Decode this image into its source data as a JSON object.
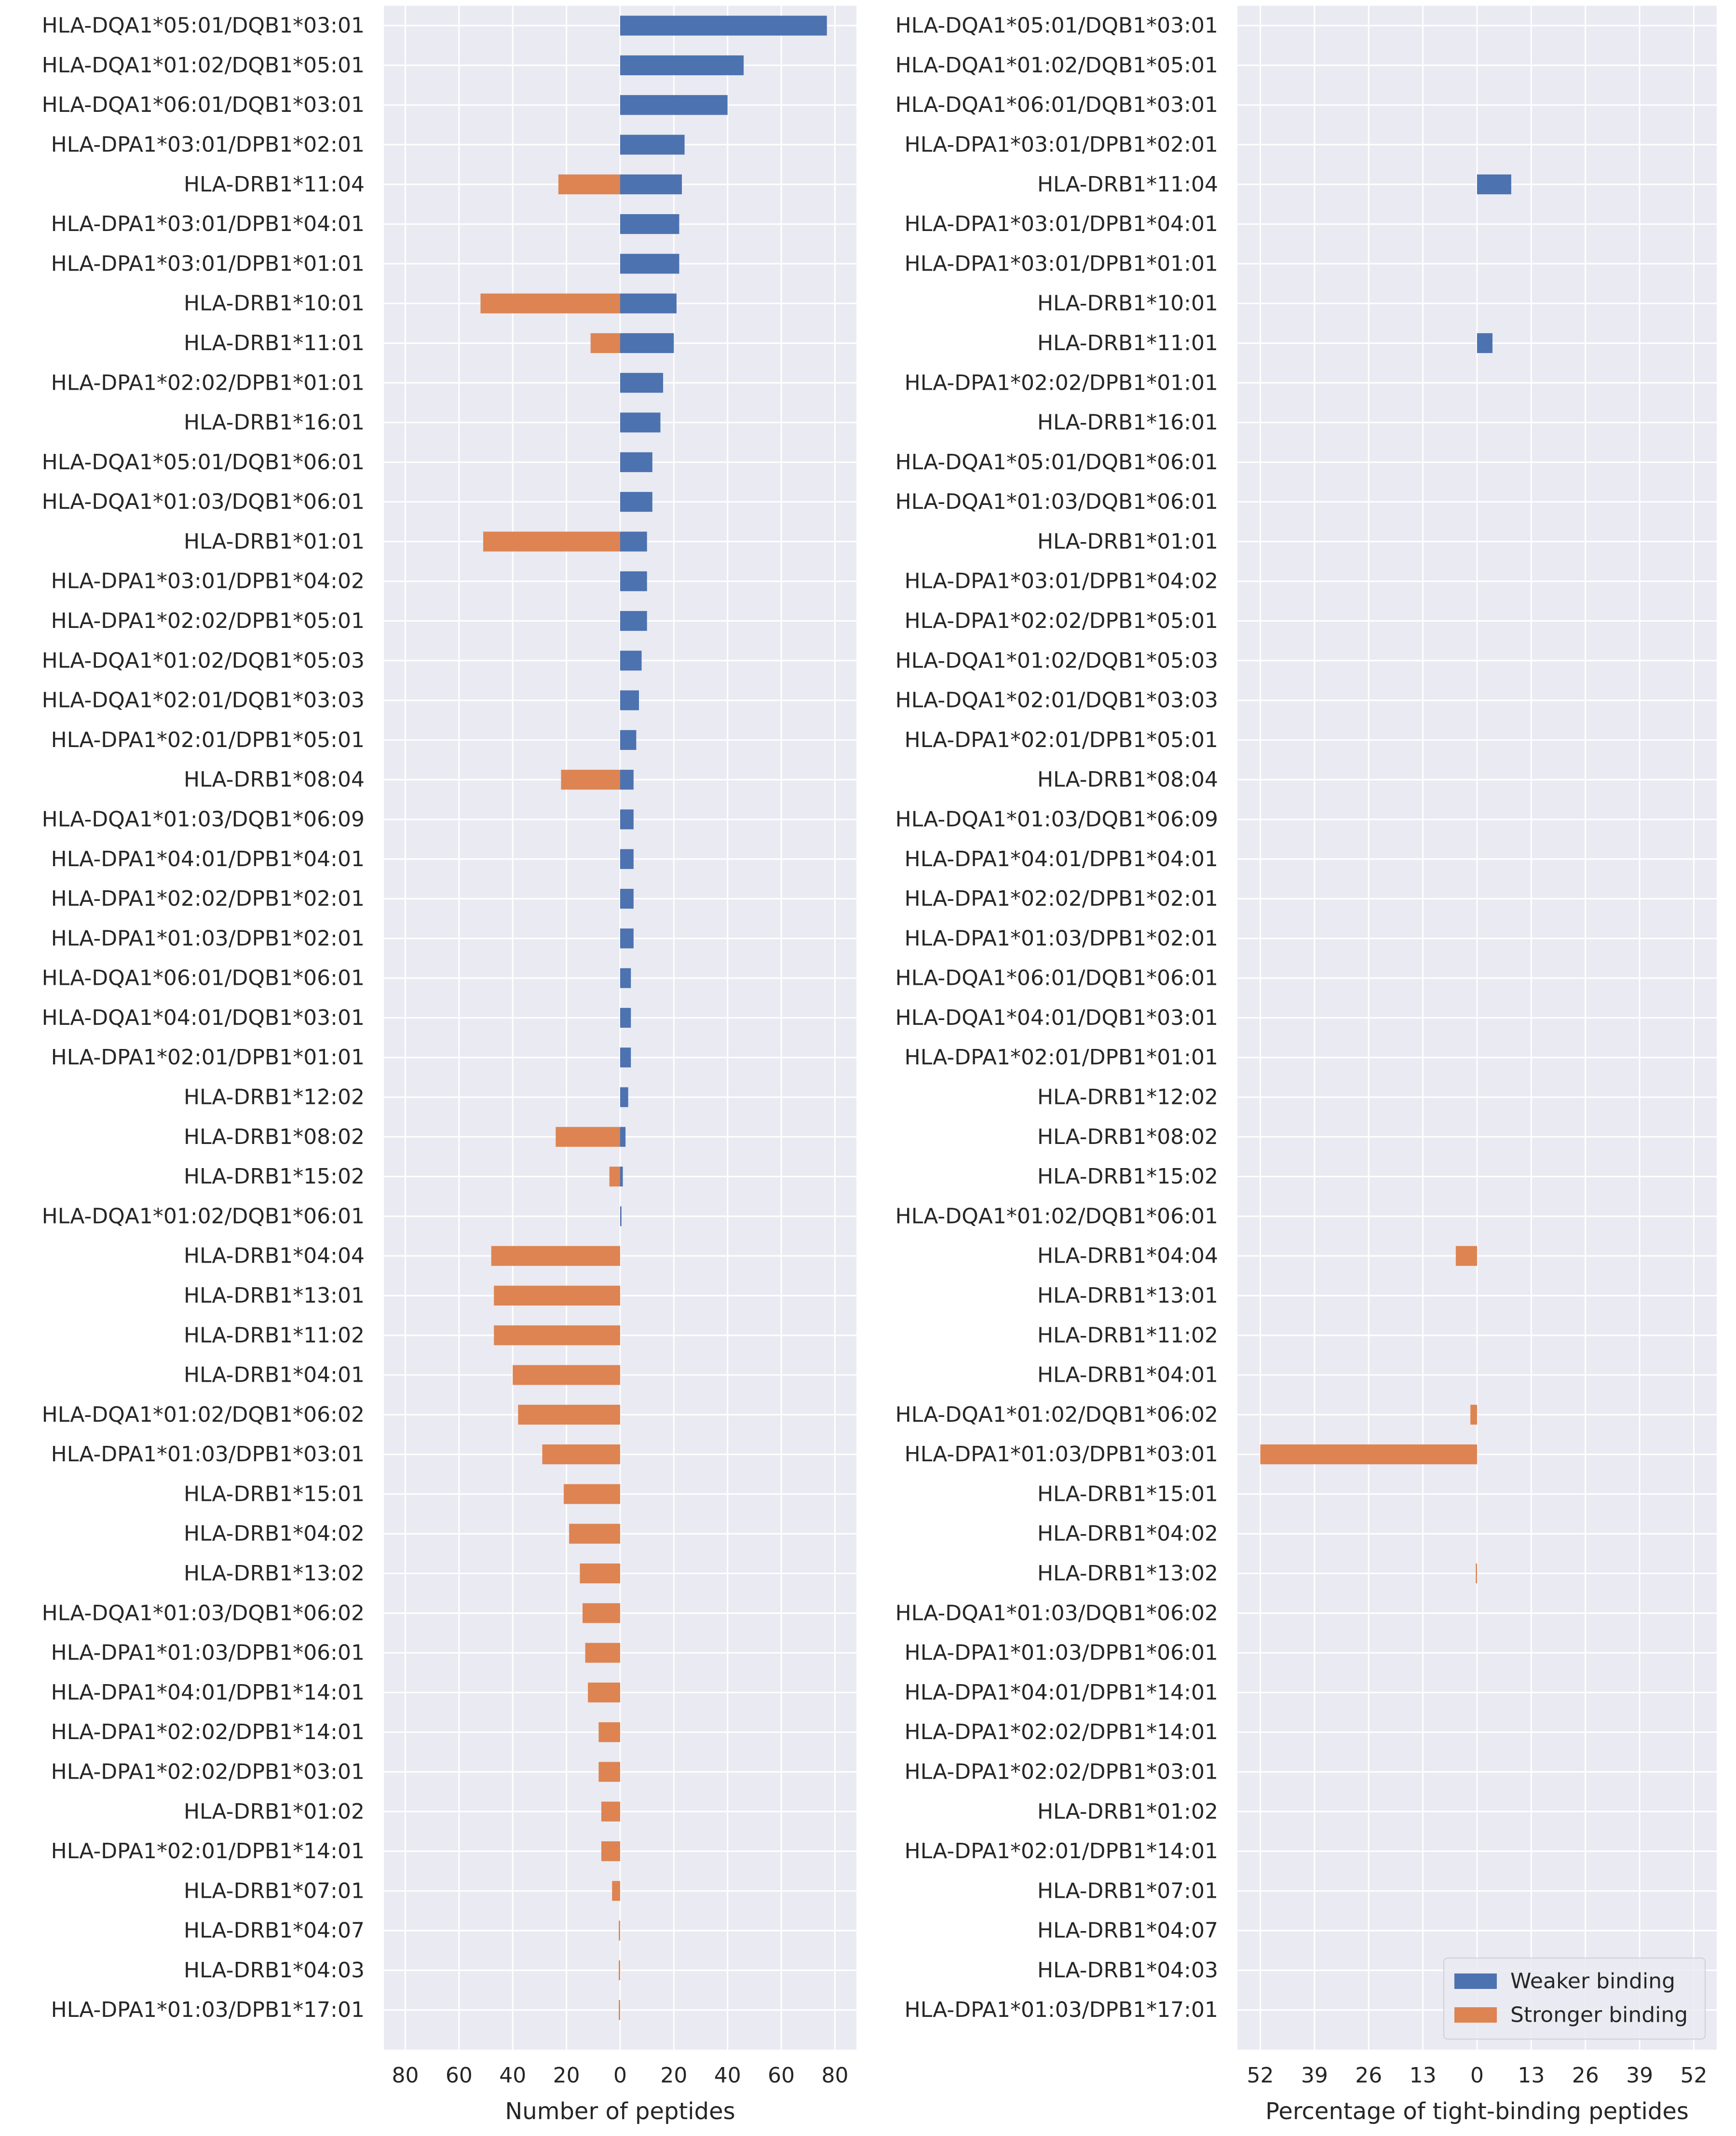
{
  "colors": {
    "weaker": "#4c72b0",
    "stronger": "#dd8452",
    "panel_bg": "#eaeaf2",
    "grid": "#ffffff",
    "text": "#262626"
  },
  "chart_data": [
    {
      "type": "bar",
      "orientation": "horizontal-diverging",
      "xlabel": "Number of peptides",
      "xticks": [
        80,
        60,
        40,
        20,
        0,
        20,
        40,
        60,
        80
      ],
      "xlim": [
        -88,
        88
      ],
      "grid": true,
      "categories": [
        "HLA-DQA1*05:01/DQB1*03:01",
        "HLA-DQA1*01:02/DQB1*05:01",
        "HLA-DQA1*06:01/DQB1*03:01",
        "HLA-DPA1*03:01/DPB1*02:01",
        "HLA-DRB1*11:04",
        "HLA-DPA1*03:01/DPB1*04:01",
        "HLA-DPA1*03:01/DPB1*01:01",
        "HLA-DRB1*10:01",
        "HLA-DRB1*11:01",
        "HLA-DPA1*02:02/DPB1*01:01",
        "HLA-DRB1*16:01",
        "HLA-DQA1*05:01/DQB1*06:01",
        "HLA-DQA1*01:03/DQB1*06:01",
        "HLA-DRB1*01:01",
        "HLA-DPA1*03:01/DPB1*04:02",
        "HLA-DPA1*02:02/DPB1*05:01",
        "HLA-DQA1*01:02/DQB1*05:03",
        "HLA-DQA1*02:01/DQB1*03:03",
        "HLA-DPA1*02:01/DPB1*05:01",
        "HLA-DRB1*08:04",
        "HLA-DQA1*01:03/DQB1*06:09",
        "HLA-DPA1*04:01/DPB1*04:01",
        "HLA-DPA1*02:02/DPB1*02:01",
        "HLA-DPA1*01:03/DPB1*02:01",
        "HLA-DQA1*06:01/DQB1*06:01",
        "HLA-DQA1*04:01/DQB1*03:01",
        "HLA-DPA1*02:01/DPB1*01:01",
        "HLA-DRB1*12:02",
        "HLA-DRB1*08:02",
        "HLA-DRB1*15:02",
        "HLA-DQA1*01:02/DQB1*06:01",
        "HLA-DRB1*04:04",
        "HLA-DRB1*13:01",
        "HLA-DRB1*11:02",
        "HLA-DRB1*04:01",
        "HLA-DQA1*01:02/DQB1*06:02",
        "HLA-DPA1*01:03/DPB1*03:01",
        "HLA-DRB1*15:01",
        "HLA-DRB1*04:02",
        "HLA-DRB1*13:02",
        "HLA-DQA1*01:03/DQB1*06:02",
        "HLA-DPA1*01:03/DPB1*06:01",
        "HLA-DPA1*04:01/DPB1*14:01",
        "HLA-DPA1*02:02/DPB1*14:01",
        "HLA-DPA1*02:02/DPB1*03:01",
        "HLA-DRB1*01:02",
        "HLA-DPA1*02:01/DPB1*14:01",
        "HLA-DRB1*07:01",
        "HLA-DRB1*04:07",
        "HLA-DRB1*04:03",
        "HLA-DPA1*01:03/DPB1*17:01"
      ],
      "series": [
        {
          "name": "Weaker binding",
          "direction": "right",
          "values": [
            77,
            46,
            40,
            24,
            23,
            22,
            22,
            21,
            20,
            16,
            15,
            12,
            12,
            10,
            10,
            10,
            8,
            7,
            6,
            5,
            5,
            5,
            5,
            5,
            4,
            4,
            4,
            3,
            2,
            1,
            0.5,
            0,
            0,
            0,
            0,
            0,
            0,
            0,
            0,
            0,
            0,
            0,
            0,
            0,
            0,
            0,
            0,
            0,
            0,
            0,
            0
          ]
        },
        {
          "name": "Stronger binding",
          "direction": "left",
          "values": [
            0,
            0,
            0,
            0,
            23,
            0,
            0,
            52,
            11,
            0,
            0,
            0,
            0,
            51,
            0,
            0,
            0,
            0,
            0,
            22,
            0,
            0,
            0,
            0,
            0,
            0,
            0,
            0,
            24,
            4,
            0,
            48,
            47,
            47,
            40,
            38,
            29,
            21,
            19,
            15,
            14,
            13,
            12,
            8,
            8,
            7,
            7,
            3,
            0.5,
            0.5,
            0.5
          ]
        }
      ]
    },
    {
      "type": "bar",
      "orientation": "horizontal-diverging",
      "xlabel": "Percentage of tight-binding peptides",
      "xticks": [
        52,
        39,
        26,
        13,
        0,
        13,
        26,
        39,
        52
      ],
      "xlim": [
        -57.5,
        57.5
      ],
      "grid": true,
      "legend": {
        "position": "lower-right",
        "entries": [
          "Weaker binding",
          "Stronger binding"
        ]
      },
      "series": [
        {
          "name": "Weaker binding",
          "direction": "right",
          "values": [
            0,
            0,
            0,
            0,
            8.2,
            0,
            0,
            0,
            3.7,
            0,
            0,
            0,
            0,
            0,
            0,
            0,
            0,
            0,
            0,
            0,
            0,
            0,
            0,
            0,
            0,
            0,
            0,
            0,
            0,
            0,
            0,
            0,
            0,
            0,
            0,
            0,
            0,
            0,
            0,
            0,
            0,
            0,
            0,
            0,
            0,
            0,
            0,
            0,
            0,
            0,
            0
          ]
        },
        {
          "name": "Stronger binding",
          "direction": "left",
          "values": [
            0,
            0,
            0,
            0,
            0,
            0,
            0,
            0,
            0,
            0,
            0,
            0,
            0,
            0,
            0,
            0,
            0,
            0,
            0,
            0,
            0,
            0,
            0,
            0,
            0,
            0,
            0,
            0,
            0,
            0,
            0,
            5.1,
            0,
            0,
            0,
            1.6,
            52,
            0,
            0,
            0.3,
            0,
            0,
            0,
            0,
            0,
            0,
            0,
            0,
            0,
            0,
            0
          ]
        }
      ]
    }
  ]
}
